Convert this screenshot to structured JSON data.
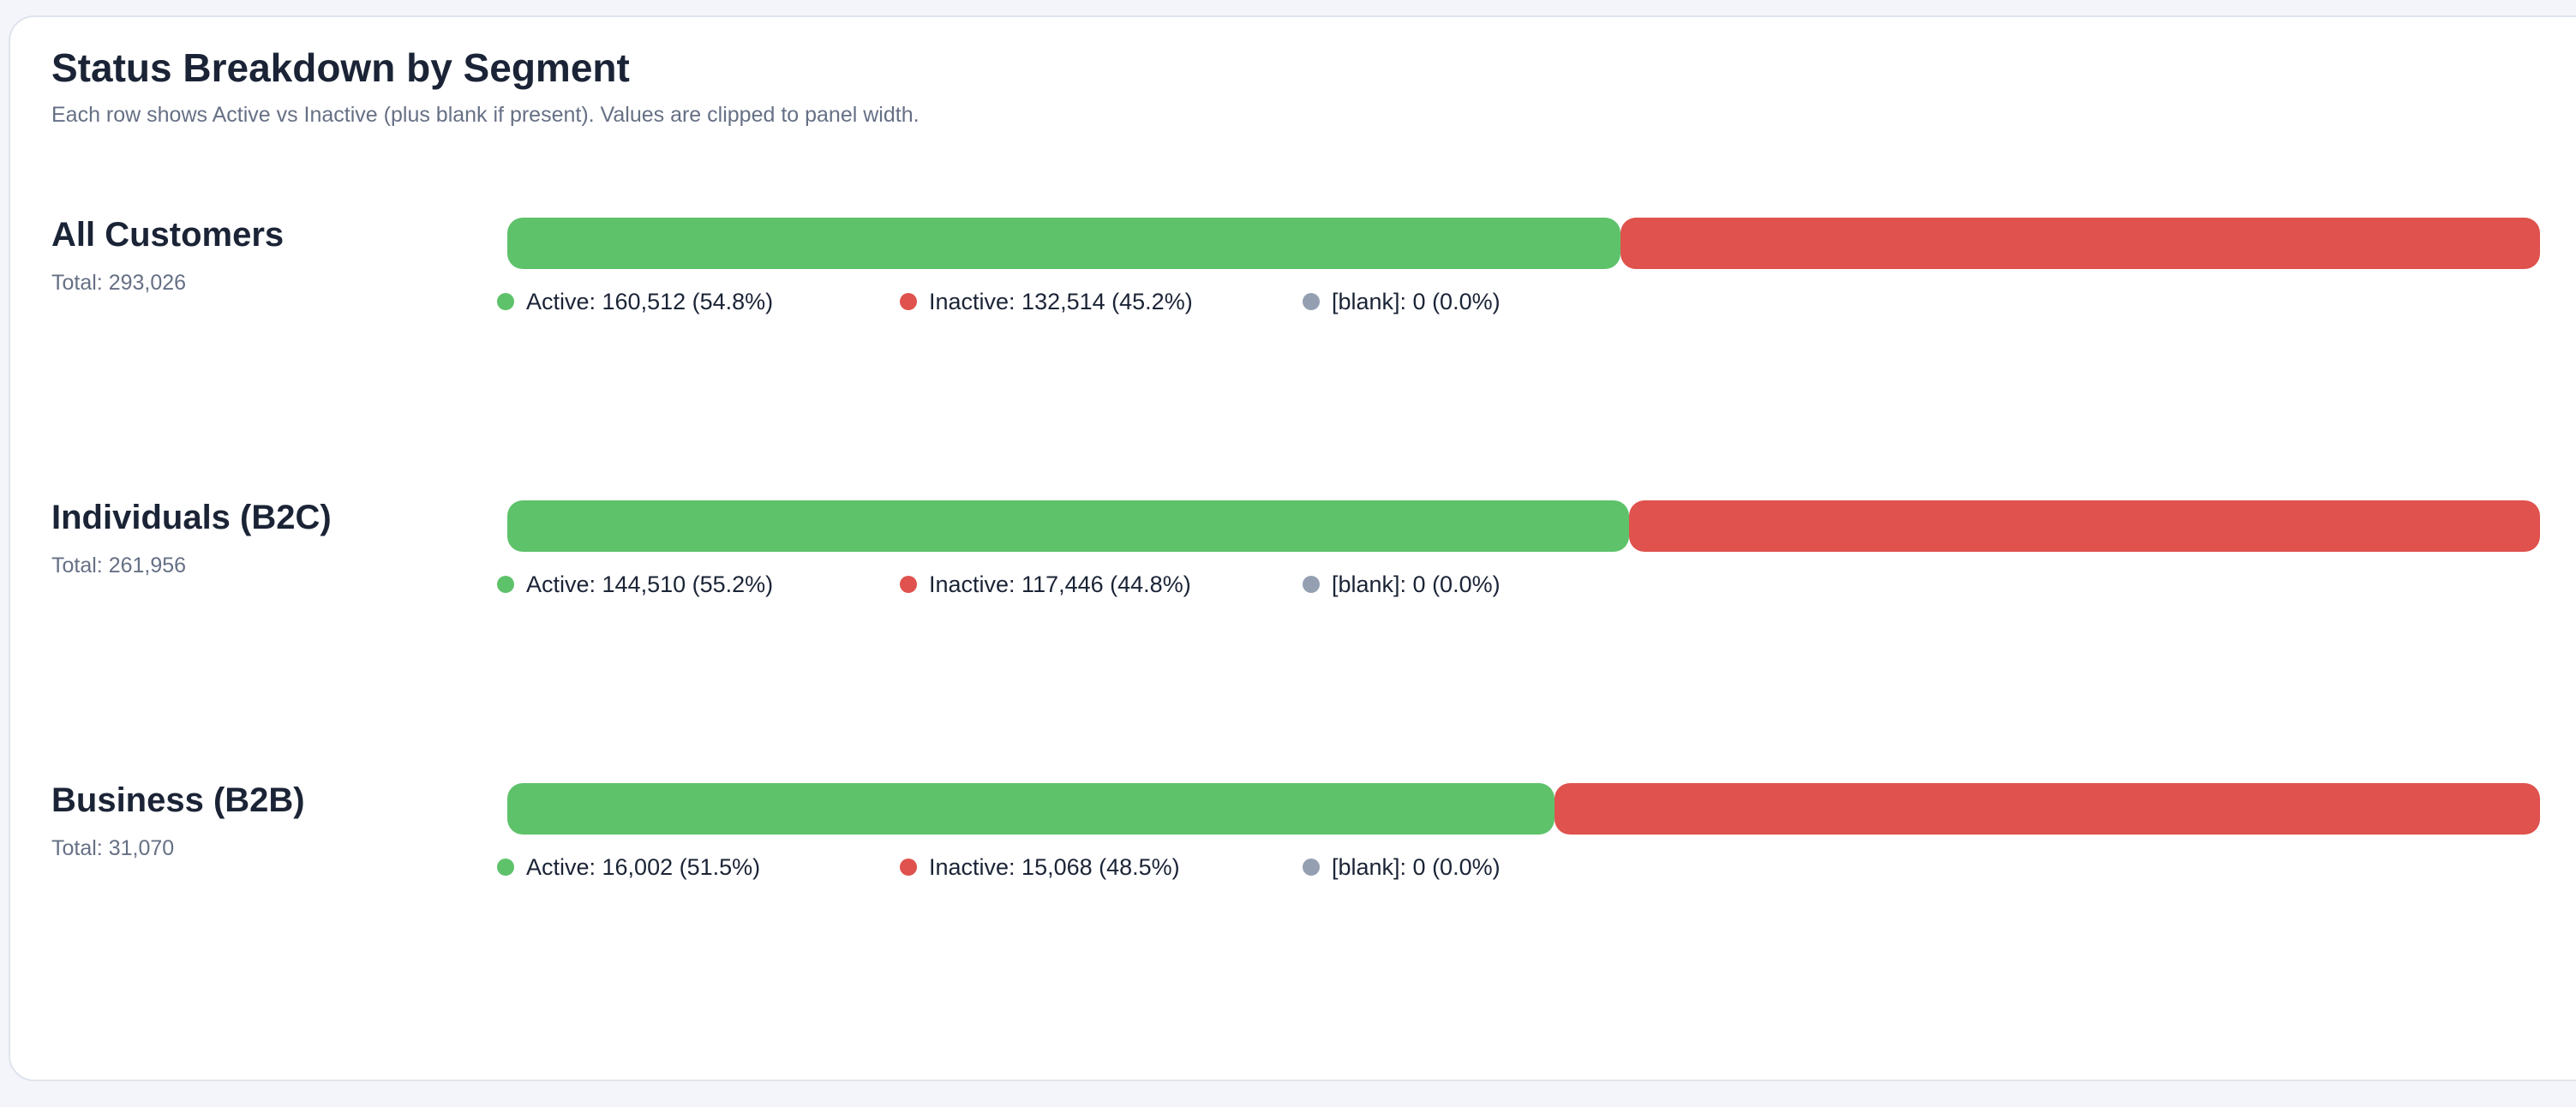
{
  "title": "Status Breakdown by Segment",
  "subtitle": "Each row shows Active vs Inactive (plus blank if present). Values are clipped to panel width.",
  "colors": {
    "active": "#5ec26a",
    "inactive": "#df524d",
    "blank": "#94a0b2"
  },
  "chart_data": {
    "type": "bar",
    "orientation": "horizontal-stacked",
    "series_names": [
      "Active",
      "Inactive",
      "[blank]"
    ],
    "rows": [
      {
        "label": "All Customers",
        "total_text": "Total: 293,026",
        "active": 160512,
        "inactive": 132514,
        "blank": 0,
        "legend": {
          "active": "Active: 160,512 (54.8%)",
          "inactive": "Inactive: 132,514 (45.2%)",
          "blank": "[blank]: 0 (0.0%)"
        }
      },
      {
        "label": "Individuals (B2C)",
        "total_text": "Total: 261,956",
        "active": 144510,
        "inactive": 117446,
        "blank": 0,
        "legend": {
          "active": "Active: 144,510 (55.2%)",
          "inactive": "Inactive: 117,446 (44.8%)",
          "blank": "[blank]: 0 (0.0%)"
        }
      },
      {
        "label": "Business (B2B)",
        "total_text": "Total: 31,070",
        "active": 16002,
        "inactive": 15068,
        "blank": 0,
        "legend": {
          "active": "Active: 16,002 (51.5%)",
          "inactive": "Inactive: 15,068 (48.5%)",
          "blank": "[blank]: 0 (0.0%)"
        }
      }
    ]
  }
}
